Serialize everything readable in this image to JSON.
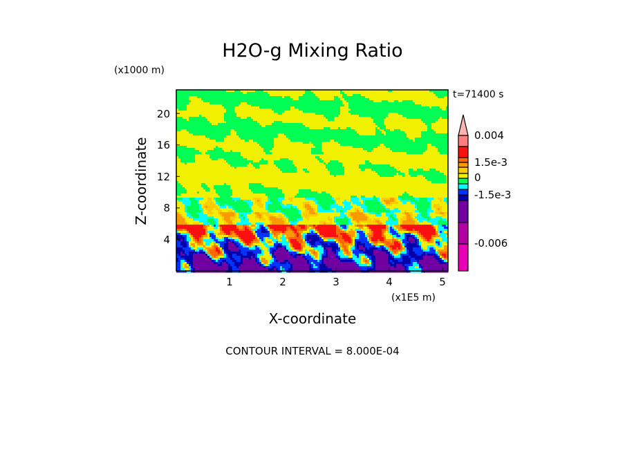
{
  "chart_data": {
    "type": "heatmap",
    "title": "H2O-g Mixing Ratio",
    "xlabel": "X-coordinate",
    "x_unit": "(x1E5 m)",
    "ylabel": "Z-coordinate",
    "y_unit": "(x1000 m)",
    "xlim": [
      0,
      5.1
    ],
    "ylim": [
      0,
      23
    ],
    "xticks": [
      "1",
      "2",
      "3",
      "4",
      "5"
    ],
    "yticks": [
      "4",
      "8",
      "12",
      "16",
      "20"
    ],
    "time_label": "t=71400 s",
    "contour_interval_text": "CONTOUR INTERVAL = 8.000E-04",
    "colorbar": {
      "labels": [
        "0.004",
        "1.5e-3",
        "0",
        "-1.5e-3",
        "-0.006"
      ],
      "overflow_color": "#ffb4b4",
      "bins": [
        "#ff7f7f",
        "#ff1010",
        "#ff6600",
        "#ff9900",
        "#ffcc00",
        "#f0f000",
        "#00ff55",
        "#00ffff",
        "#0033ff",
        "#0000aa",
        "#7000a0",
        "#b400a0",
        "#e800b4"
      ]
    }
  }
}
